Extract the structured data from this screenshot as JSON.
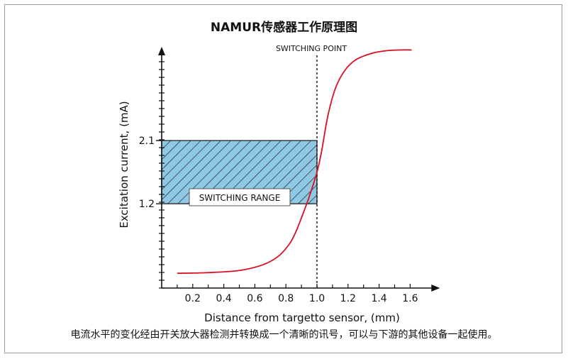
{
  "chart_data": {
    "type": "line",
    "title": "NAMUR传感器工作原理图",
    "xlabel": "Distance from targetto sensor, (mm)",
    "ylabel": "Excitation current, (mA)",
    "x_ticks": [
      "0.2",
      "0.4",
      "0.6",
      "0.8",
      "1.0",
      "1.2",
      "1.4",
      "1.6"
    ],
    "y_ticks": [
      "1.2",
      "2.1"
    ],
    "xlim": [
      0.0,
      1.7
    ],
    "ylim": [
      0.0,
      3.3
    ],
    "switching_point": {
      "x": 1.0,
      "label": "SWITCHING POINT"
    },
    "switching_range": {
      "y_low": 1.2,
      "y_high": 2.1,
      "x_start": 0.0,
      "x_end": 1.0,
      "label": "SWITCHING RANGE"
    },
    "series": [
      {
        "color": "#d9101f",
        "x": [
          0.1,
          0.3,
          0.5,
          0.65,
          0.75,
          0.82,
          0.86,
          0.9,
          0.95,
          1.0,
          1.03,
          1.07,
          1.12,
          1.18,
          1.25,
          1.35,
          1.45,
          1.55,
          1.61
        ],
        "y": [
          0.21,
          0.22,
          0.25,
          0.33,
          0.45,
          0.62,
          0.78,
          1.0,
          1.3,
          1.65,
          1.95,
          2.45,
          2.85,
          3.1,
          3.25,
          3.34,
          3.38,
          3.39,
          3.39
        ]
      }
    ]
  },
  "caption": "电流水平的变化经由开关放大器检测并转换成一个清晰的讯号，可以与下游的其他设备一起使用。",
  "colors": {
    "range_fill": "#8ec8e3",
    "curve": "#d9101f",
    "axis": "#111111"
  }
}
